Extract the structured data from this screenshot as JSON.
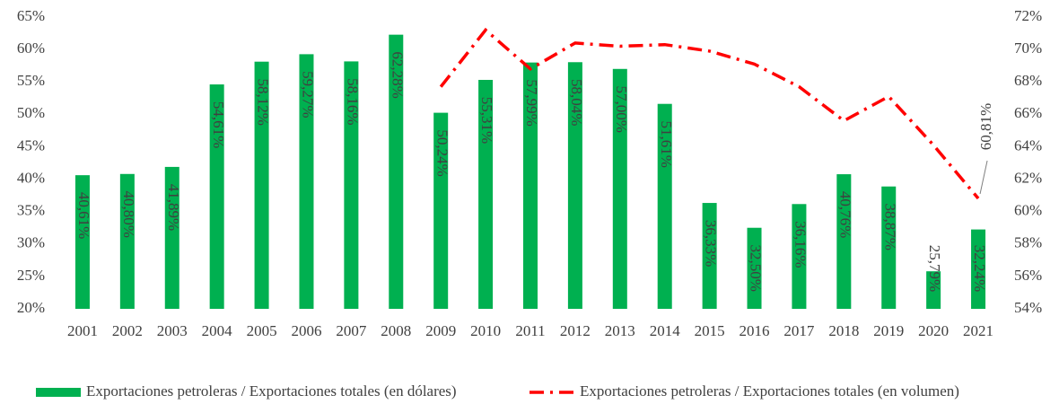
{
  "chart_data": {
    "type": "bar-line",
    "categories": [
      "2001",
      "2002",
      "2003",
      "2004",
      "2005",
      "2006",
      "2007",
      "2008",
      "2009",
      "2010",
      "2011",
      "2012",
      "2013",
      "2014",
      "2015",
      "2016",
      "2017",
      "2018",
      "2019",
      "2020",
      "2021"
    ],
    "series": [
      {
        "name": "Exportaciones petroleras / Exportaciones totales (en dólares)",
        "type": "bar",
        "color": "#00b050",
        "values": [
          40.61,
          40.8,
          41.89,
          54.61,
          58.12,
          59.27,
          58.16,
          62.28,
          50.24,
          55.31,
          57.99,
          58.04,
          57.0,
          51.61,
          36.33,
          32.5,
          36.16,
          40.76,
          38.87,
          25.79,
          32.24
        ],
        "value_labels": [
          "40,61%",
          "40,80%",
          "41,89%",
          "54,61%",
          "58,12%",
          "59,27%",
          "58,16%",
          "62,28%",
          "50,24%",
          "55,31%",
          "57,99%",
          "58,04%",
          "57,00%",
          "51,61%",
          "36,33%",
          "32,50%",
          "36,16%",
          "40,76%",
          "38,87%",
          "25,79%",
          "32,24%"
        ]
      },
      {
        "name": "Exportaciones petroleras / Exportaciones totales (en volumen)",
        "type": "line",
        "axis": "y2",
        "color": "#ff0000",
        "values": [
          null,
          null,
          null,
          null,
          null,
          null,
          null,
          null,
          67.7,
          71.2,
          68.8,
          70.4,
          70.2,
          70.3,
          69.9,
          69.1,
          67.7,
          65.6,
          67.1,
          64.1,
          60.81
        ],
        "value_labels": [
          null,
          null,
          null,
          null,
          null,
          null,
          null,
          null,
          null,
          null,
          null,
          null,
          null,
          null,
          null,
          null,
          null,
          null,
          null,
          null,
          "60,81%"
        ]
      }
    ],
    "ylim": [
      20,
      65
    ],
    "yticks": [
      {
        "value": 20,
        "label": "20%"
      },
      {
        "value": 25,
        "label": "25%"
      },
      {
        "value": 30,
        "label": "30%"
      },
      {
        "value": 35,
        "label": "35%"
      },
      {
        "value": 40,
        "label": "40%"
      },
      {
        "value": 45,
        "label": "45%"
      },
      {
        "value": 50,
        "label": "50%"
      },
      {
        "value": 55,
        "label": "55%"
      },
      {
        "value": 60,
        "label": "60%"
      },
      {
        "value": 65,
        "label": "65%"
      }
    ],
    "y2lim": [
      54,
      72
    ],
    "y2ticks": [
      {
        "value": 54,
        "label": "54%"
      },
      {
        "value": 56,
        "label": "56%"
      },
      {
        "value": 58,
        "label": "58%"
      },
      {
        "value": 60,
        "label": "60%"
      },
      {
        "value": 62,
        "label": "62%"
      },
      {
        "value": 64,
        "label": "64%"
      },
      {
        "value": 66,
        "label": "66%"
      },
      {
        "value": 68,
        "label": "68%"
      },
      {
        "value": 70,
        "label": "70%"
      },
      {
        "value": 72,
        "label": "72%"
      }
    ],
    "legend": "bottom",
    "grid": false
  }
}
